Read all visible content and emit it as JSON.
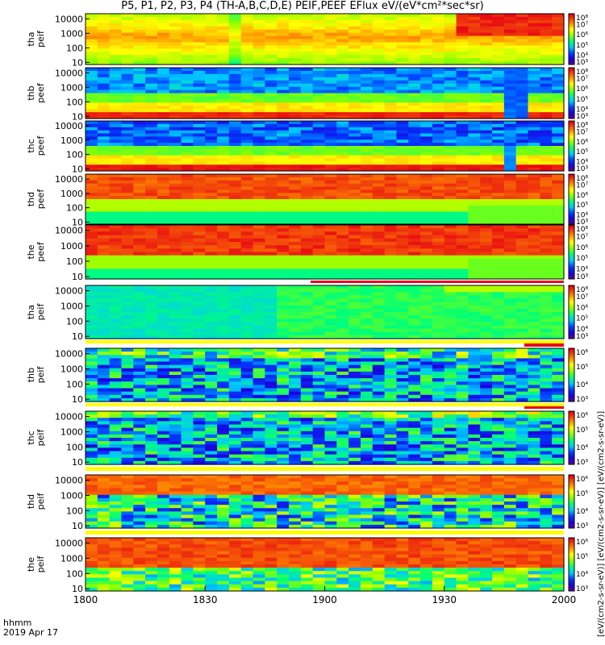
{
  "title": "P5, P1, P2, P3, P4 (TH-A,B,C,D,E) PEIF,PEEF EFlux eV/(eV*cm²*sec*sr)",
  "footer": {
    "time_label": "hhmm",
    "date_label": "2019 Apr 17"
  },
  "colorbar_unit": "[eV/(cm2-s-sr-eV)] [eV/(cm2-s-sr-eV)] [eV/(cm2-s-sr-eV)]",
  "colors": {
    "frame": "#000000",
    "background": "#ffffff"
  },
  "chart_data": {
    "type": "heatmap",
    "x_ticks": [
      "1800",
      "1830",
      "1900",
      "1930",
      "2000"
    ],
    "y_ticks": [
      "10",
      "100",
      "1000",
      "10000"
    ],
    "y_scale": "log",
    "panels": [
      {
        "label": "tha peif",
        "cbar_ticks": [
          "10³",
          "10⁴",
          "10⁵",
          "10⁶",
          "10⁷",
          "10⁸"
        ],
        "cbar_range": [
          3,
          8
        ]
      },
      {
        "label": "thb peef",
        "cbar_ticks": [
          "10³",
          "10⁴",
          "10⁵",
          "10⁶",
          "10⁷",
          "10⁸"
        ],
        "cbar_range": [
          3,
          8
        ]
      },
      {
        "label": "thc peef",
        "cbar_ticks": [
          "10³",
          "10⁴",
          "10⁵",
          "10⁶",
          "10⁷",
          "10⁸"
        ],
        "cbar_range": [
          3,
          8
        ]
      },
      {
        "label": "thd peef",
        "cbar_ticks": [
          "10³",
          "10⁴",
          "10⁵",
          "10⁶",
          "10⁷",
          "10⁸"
        ],
        "cbar_range": [
          3,
          8
        ]
      },
      {
        "label": "the peef",
        "cbar_ticks": [
          "10³",
          "10⁴",
          "10⁵",
          "10⁶",
          "10⁷",
          "10⁸"
        ],
        "cbar_range": [
          3,
          8
        ]
      },
      {
        "label": "tha peif",
        "cbar_ticks": [
          "10³",
          "10⁴",
          "10⁵",
          "10⁶",
          "10⁷",
          "10⁸"
        ],
        "cbar_range": [
          3,
          8
        ]
      },
      {
        "label": "thb peif",
        "cbar_ticks": [
          "10³",
          "10⁴",
          "10⁵",
          "10⁶"
        ],
        "cbar_range": [
          3,
          6
        ]
      },
      {
        "label": "thc peif",
        "cbar_ticks": [
          "10³",
          "10⁴",
          "10⁵",
          "10⁶"
        ],
        "cbar_range": [
          3,
          6
        ]
      },
      {
        "label": "thd peif",
        "cbar_ticks": [
          "10³",
          "10⁴",
          "10⁵",
          "10⁶"
        ],
        "cbar_range": [
          3,
          6
        ]
      },
      {
        "label": "the peif",
        "cbar_ticks": [
          "10³",
          "10⁴",
          "10⁵",
          "10⁶"
        ],
        "cbar_range": [
          3,
          6
        ]
      }
    ]
  }
}
